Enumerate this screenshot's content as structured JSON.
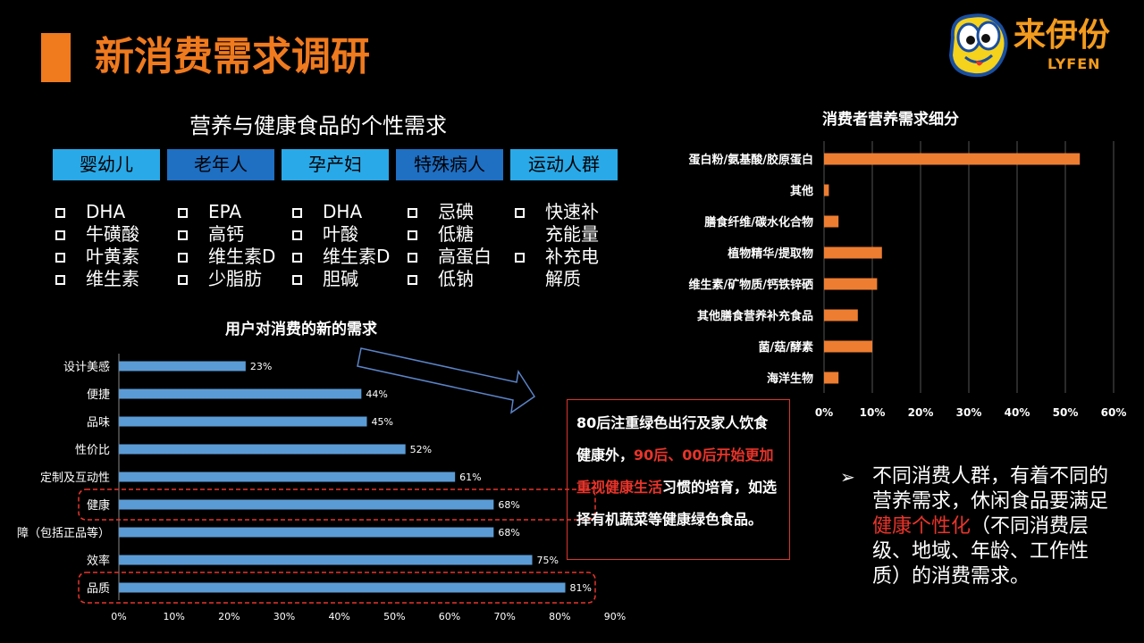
{
  "header": {
    "title": "新消费需求调研",
    "logo_name": "来伊份",
    "logo_sub": "LYFEN"
  },
  "groups": {
    "title": "营养与健康食品的个性需求",
    "tabs": [
      {
        "label": "婴幼儿",
        "items": [
          "DHA",
          "牛磺酸",
          "叶黄素",
          "维生素"
        ]
      },
      {
        "label": "老年人",
        "items": [
          "EPA",
          "高钙",
          "维生素D",
          "少脂肪"
        ]
      },
      {
        "label": "孕产妇",
        "items": [
          "DHA",
          "叶酸",
          "维生素D",
          "胆碱"
        ]
      },
      {
        "label": "特殊病人",
        "items": [
          "忌碘",
          "低糖",
          "高蛋白",
          "低钠"
        ]
      },
      {
        "label": "运动人群",
        "items": [
          "快速补",
          "充能量",
          "补充电",
          "解质"
        ]
      }
    ]
  },
  "callout": {
    "part1": "80后注重绿色出行及家人饮食健康外，",
    "part2_red": "90后、00后开始更加重视健康生活",
    "part3": "习惯的培育，如选择有机蔬菜等健康绿色食品。"
  },
  "bullet": {
    "part1": "不同消费人群，有着不同的营养需求，休闲食品要满足",
    "part2_red": "健康个性化",
    "part3": "（不同消费层级、地域、年龄、工作性质）的消费需求。"
  },
  "colors": {
    "accent": "#f07a1e",
    "bar_blue": "#5b9bd5",
    "bar_orange": "#ed7d31",
    "highlight": "#e8342a"
  },
  "chart_data": [
    {
      "type": "bar",
      "orientation": "horizontal",
      "title": "用户对消费的新的需求",
      "categories": [
        "设计美感",
        "便捷",
        "品味",
        "性价比",
        "定制及互动性",
        "健康",
        "障（包括正品等）",
        "效率",
        "品质"
      ],
      "values": [
        23,
        44,
        45,
        52,
        61,
        68,
        68,
        75,
        81
      ],
      "value_labels": [
        "23%",
        "44%",
        "45%",
        "52%",
        "61%",
        "68%",
        "68%",
        "75%",
        "81%"
      ],
      "xlim": [
        0,
        90
      ],
      "ticks": [
        "0%",
        "10%",
        "20%",
        "30%",
        "40%",
        "50%",
        "60%",
        "70%",
        "80%",
        "90%"
      ],
      "highlighted": [
        "健康",
        "品质"
      ]
    },
    {
      "type": "bar",
      "orientation": "horizontal",
      "title": "消费者营养需求细分",
      "categories": [
        "蛋白粉/氨基酸/胶原蛋白",
        "其他",
        "膳食纤维/碳水化合物",
        "植物精华/提取物",
        "维生素/矿物质/钙铁锌硒",
        "其他膳食营养补充食品",
        "菌/菇/酵素",
        "海洋生物"
      ],
      "values": [
        53,
        1,
        3,
        12,
        11,
        7,
        10,
        3
      ],
      "xlim": [
        0,
        60
      ],
      "ticks": [
        "0%",
        "10%",
        "20%",
        "30%",
        "40%",
        "50%",
        "60%"
      ],
      "grid": true
    }
  ]
}
